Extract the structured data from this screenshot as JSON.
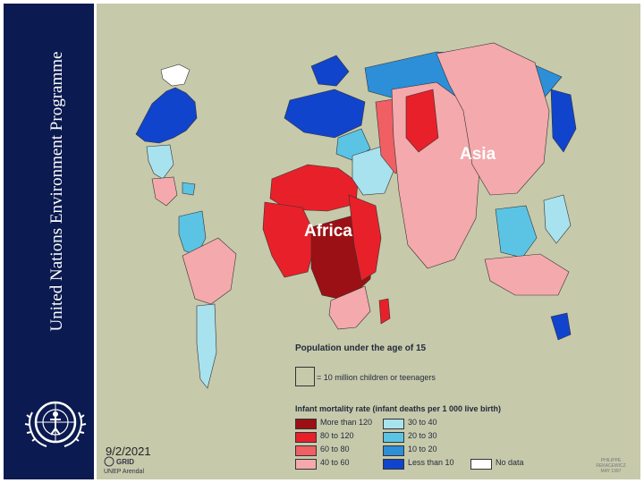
{
  "sidebar": {
    "title": "United Nations Environment Programme",
    "background": "#0b1a50",
    "logo_icon": "unep-emblem-icon"
  },
  "map": {
    "labels": {
      "asia": "Asia",
      "africa": "Africa"
    },
    "background": "#c7c9ab"
  },
  "legend": {
    "population_title": "Population under the age of 15",
    "population_box_label": "= 10 million children or teenagers",
    "rate_title": "Infant mortality rate (infant deaths per 1 000 live birth)",
    "categories": [
      {
        "label": "More than 120",
        "color": "#9b1014"
      },
      {
        "label": "80 to 120",
        "color": "#e8202a"
      },
      {
        "label": "60 to 80",
        "color": "#ef5f63"
      },
      {
        "label": "40 to 60",
        "color": "#f4a9ac"
      },
      {
        "label": "30 to 40",
        "color": "#a8e2ee"
      },
      {
        "label": "20 to 30",
        "color": "#5bc4e4"
      },
      {
        "label": "10 to 20",
        "color": "#2c8fd8"
      },
      {
        "label": "Less than 10",
        "color": "#1044cc"
      },
      {
        "label": "No data",
        "color": "#ffffff"
      }
    ]
  },
  "footer": {
    "date": "9/2/2021",
    "logo_line1": "GRID",
    "logo_line2": "UNEP  Arendal",
    "credit_line1": "PHILIPPE REKACEWICZ",
    "credit_line2": "MAY 1997"
  }
}
